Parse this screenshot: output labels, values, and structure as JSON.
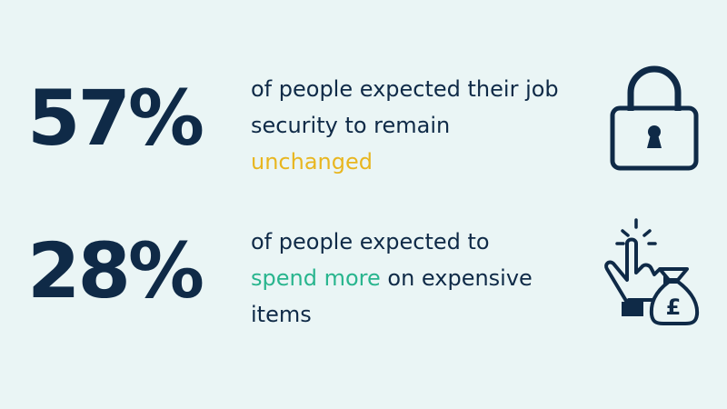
{
  "stats": [
    {
      "number": "57%",
      "text_parts": [
        "of people expected their job security to remain",
        "unchanged"
      ],
      "icon": "padlock-icon",
      "highlight_color": "#e8b620"
    },
    {
      "number": "28%",
      "text_parts": [
        "of people expected to",
        "spend more",
        "on expensive items"
      ],
      "icon": "hand-money-bag-pound-icon",
      "icon_symbol": "£",
      "highlight_color": "#29b58e"
    }
  ],
  "colors": {
    "background": "#eaf5f5",
    "primary_text": "#0f2a47",
    "yellow_highlight": "#e8b620",
    "green_highlight": "#29b58e"
  }
}
